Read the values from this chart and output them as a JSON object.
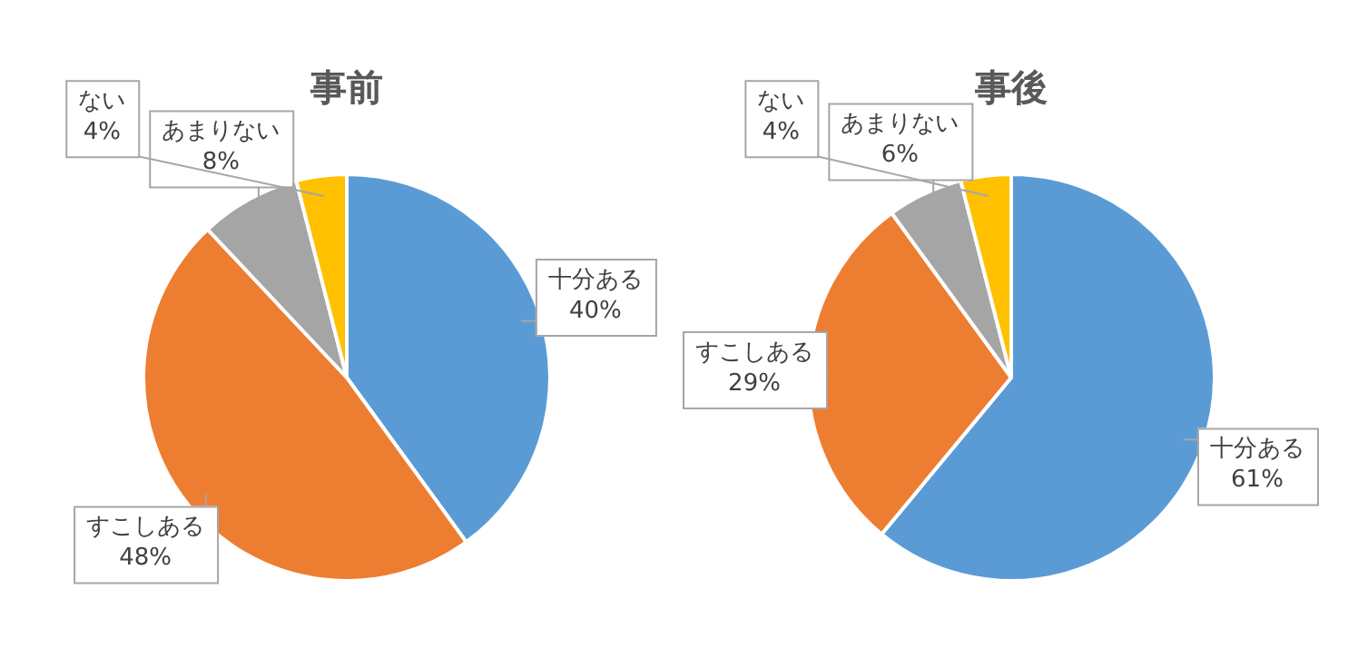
{
  "chart_data": [
    {
      "type": "pie",
      "title": "事前",
      "categories": [
        "十分ある",
        "すこしある",
        "あまりない",
        "ない"
      ],
      "values": [
        40,
        48,
        8,
        4
      ],
      "colors": [
        "#5b9bd5",
        "#ed7d31",
        "#a5a5a5",
        "#ffc000"
      ],
      "value_labels": [
        "40%",
        "48%",
        "8%",
        "4%"
      ]
    },
    {
      "type": "pie",
      "title": "事後",
      "categories": [
        "十分ある",
        "すこしある",
        "あまりない",
        "ない"
      ],
      "values": [
        61,
        29,
        6,
        4
      ],
      "colors": [
        "#5b9bd5",
        "#ed7d31",
        "#a5a5a5",
        "#ffc000"
      ],
      "value_labels": [
        "61%",
        "29%",
        "6%",
        "4%"
      ]
    }
  ]
}
